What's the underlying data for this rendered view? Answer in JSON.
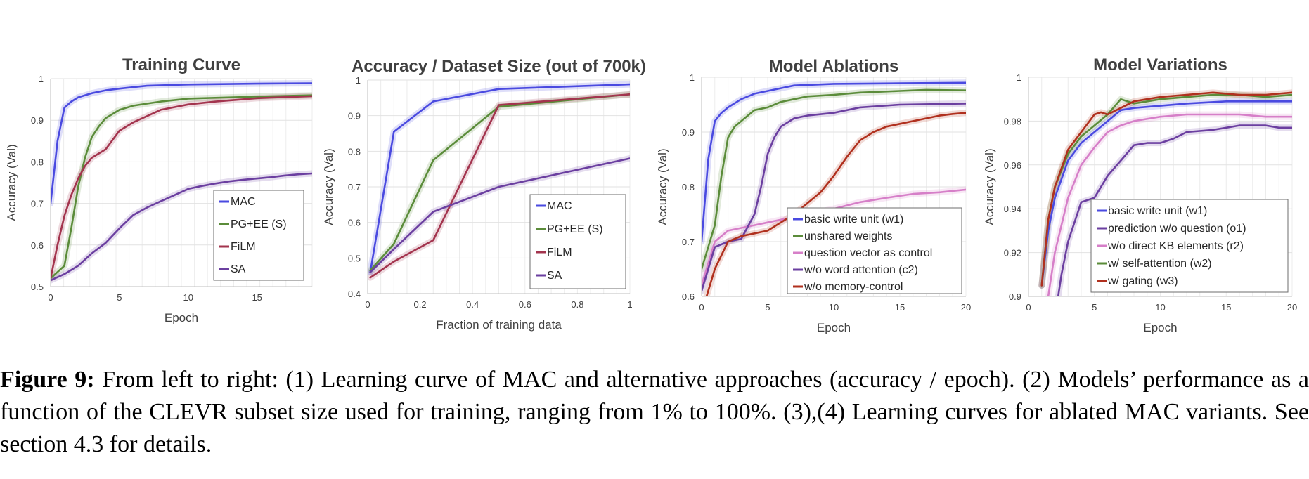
{
  "caption": {
    "label": "Figure 9:",
    "text": "From left to right: (1) Learning curve of MAC and alternative approaches (accuracy / epoch). (2) Models’ performance as a function of the CLEVR subset size used for training, ranging from 1% to 100%. (3),(4) Learning curves for ablated MAC variants. See section 4.3 for details."
  },
  "chart_data": [
    {
      "type": "line",
      "title": "Training Curve",
      "xlabel": "Epoch",
      "ylabel": "Accuracy (Val)",
      "xlim": [
        0,
        19
      ],
      "ylim": [
        0.5,
        1
      ],
      "xticks": [
        0,
        5,
        10,
        15
      ],
      "yticks": [
        0.5,
        0.6,
        0.7,
        0.8,
        0.9,
        1
      ],
      "legend_position": "bottom-right",
      "series": [
        {
          "name": "MAC",
          "color": "#4a4ae0",
          "x": [
            0,
            0.5,
            1,
            1.5,
            2,
            3,
            4,
            5,
            7,
            10,
            15,
            19
          ],
          "y": [
            0.7,
            0.85,
            0.93,
            0.945,
            0.955,
            0.965,
            0.972,
            0.976,
            0.983,
            0.986,
            0.988,
            0.989
          ]
        },
        {
          "name": "PG+EE (S)",
          "color": "#5b8c3a",
          "x": [
            0,
            1,
            1.5,
            2,
            2.5,
            3,
            3.5,
            4,
            5,
            6,
            7,
            8,
            10,
            15,
            19
          ],
          "y": [
            0.52,
            0.55,
            0.64,
            0.74,
            0.81,
            0.86,
            0.885,
            0.905,
            0.925,
            0.935,
            0.94,
            0.945,
            0.952,
            0.957,
            0.96
          ]
        },
        {
          "name": "FiLM",
          "color": "#a3344e",
          "x": [
            0,
            0.5,
            1,
            1.5,
            2,
            2.5,
            3,
            4,
            5,
            6,
            7,
            8,
            10,
            12,
            15,
            19
          ],
          "y": [
            0.52,
            0.6,
            0.67,
            0.72,
            0.76,
            0.79,
            0.81,
            0.83,
            0.875,
            0.895,
            0.91,
            0.925,
            0.938,
            0.945,
            0.953,
            0.958
          ]
        },
        {
          "name": "SA",
          "color": "#6b3fa0",
          "x": [
            0,
            1,
            2,
            3,
            4,
            5,
            6,
            7,
            8,
            9,
            10,
            11,
            12,
            13,
            14,
            15,
            16,
            17,
            18,
            19
          ],
          "y": [
            0.515,
            0.53,
            0.55,
            0.58,
            0.605,
            0.64,
            0.672,
            0.69,
            0.705,
            0.72,
            0.735,
            0.742,
            0.748,
            0.753,
            0.757,
            0.76,
            0.763,
            0.767,
            0.77,
            0.772
          ]
        }
      ]
    },
    {
      "type": "line",
      "title": "Accuracy / Dataset Size (out of 700k)",
      "xlabel": "Fraction of training data",
      "ylabel": "Accuracy (Val)",
      "xlim": [
        0,
        1
      ],
      "ylim": [
        0.4,
        1
      ],
      "xticks": [
        0,
        0.2,
        0.4,
        0.6,
        0.8,
        1
      ],
      "yticks": [
        0.4,
        0.5,
        0.6,
        0.7,
        0.8,
        0.9,
        1
      ],
      "legend_position": "bottom-right",
      "series": [
        {
          "name": "MAC",
          "color": "#4a4ae0",
          "x": [
            0.01,
            0.1,
            0.25,
            0.5,
            1
          ],
          "y": [
            0.46,
            0.855,
            0.94,
            0.975,
            0.988
          ]
        },
        {
          "name": "PG+EE (S)",
          "color": "#5b8c3a",
          "x": [
            0.01,
            0.1,
            0.25,
            0.5,
            1
          ],
          "y": [
            0.465,
            0.54,
            0.775,
            0.925,
            0.96
          ]
        },
        {
          "name": "FiLM",
          "color": "#a3344e",
          "x": [
            0.01,
            0.1,
            0.25,
            0.5,
            1
          ],
          "y": [
            0.445,
            0.49,
            0.55,
            0.93,
            0.96
          ]
        },
        {
          "name": "SA",
          "color": "#6b3fa0",
          "x": [
            0.01,
            0.1,
            0.25,
            0.5,
            1
          ],
          "y": [
            0.46,
            0.525,
            0.63,
            0.7,
            0.78
          ]
        }
      ]
    },
    {
      "type": "line",
      "title": "Model Ablations",
      "xlabel": "Epoch",
      "ylabel": "Accuracy (Val)",
      "xlim": [
        0,
        20
      ],
      "ylim": [
        0.6,
        1
      ],
      "xticks": [
        0,
        5,
        10,
        15,
        20
      ],
      "yticks": [
        0.6,
        0.7,
        0.8,
        0.9,
        1
      ],
      "legend_position": "bottom-right",
      "series": [
        {
          "name": "basic write unit (w1)",
          "color": "#4a4ae0",
          "x": [
            0,
            0.5,
            1,
            1.5,
            2,
            3,
            4,
            5,
            6,
            7,
            10,
            15,
            20
          ],
          "y": [
            0.7,
            0.85,
            0.92,
            0.935,
            0.945,
            0.96,
            0.97,
            0.975,
            0.98,
            0.985,
            0.988,
            0.989,
            0.99
          ]
        },
        {
          "name": "unshared weights",
          "color": "#5b8c3a",
          "x": [
            0,
            1,
            1.5,
            2,
            2.5,
            3,
            4,
            5,
            6,
            7,
            8,
            10,
            12,
            15,
            17,
            20
          ],
          "y": [
            0.65,
            0.73,
            0.82,
            0.89,
            0.91,
            0.92,
            0.94,
            0.945,
            0.955,
            0.96,
            0.965,
            0.968,
            0.972,
            0.975,
            0.977,
            0.976
          ]
        },
        {
          "name": "question vector as control",
          "color": "#d67fc8",
          "x": [
            0,
            1,
            2,
            3,
            4,
            5,
            6,
            7,
            8,
            10,
            12,
            14,
            16,
            18,
            20
          ],
          "y": [
            0.62,
            0.7,
            0.72,
            0.725,
            0.73,
            0.735,
            0.74,
            0.745,
            0.75,
            0.76,
            0.772,
            0.78,
            0.787,
            0.79,
            0.795
          ]
        },
        {
          "name": "w/o word attention (c2)",
          "color": "#6b3fa0",
          "x": [
            0,
            1,
            2,
            3,
            4,
            4.5,
            5,
            5.5,
            6,
            7,
            8,
            10,
            12,
            15,
            20
          ],
          "y": [
            0.61,
            0.69,
            0.7,
            0.705,
            0.75,
            0.8,
            0.86,
            0.89,
            0.91,
            0.925,
            0.93,
            0.935,
            0.945,
            0.95,
            0.952
          ]
        },
        {
          "name": "w/o memory-control",
          "color": "#b0301e",
          "x": [
            0,
            1,
            2,
            3,
            4,
            5,
            6,
            7,
            8,
            9,
            10,
            11,
            12,
            13,
            14,
            15,
            16,
            17,
            18,
            19,
            20
          ],
          "y": [
            0.57,
            0.65,
            0.7,
            0.71,
            0.715,
            0.72,
            0.735,
            0.75,
            0.77,
            0.79,
            0.82,
            0.855,
            0.885,
            0.9,
            0.91,
            0.915,
            0.92,
            0.925,
            0.93,
            0.933,
            0.935
          ]
        }
      ]
    },
    {
      "type": "line",
      "title": "Model Variations",
      "xlabel": "Epoch",
      "ylabel": "Accuracy (Val)",
      "xlim": [
        0,
        20
      ],
      "ylim": [
        0.9,
        1
      ],
      "xticks": [
        0,
        5,
        10,
        15,
        20
      ],
      "yticks": [
        0.9,
        0.92,
        0.94,
        0.96,
        0.98,
        1
      ],
      "legend_position": "bottom-right",
      "series": [
        {
          "name": "basic write unit (w1)",
          "color": "#4a4ae0",
          "x": [
            1,
            1.5,
            2,
            3,
            4,
            5,
            6,
            7,
            8,
            10,
            12,
            15,
            20
          ],
          "y": [
            0.905,
            0.93,
            0.945,
            0.962,
            0.97,
            0.975,
            0.98,
            0.985,
            0.986,
            0.987,
            0.988,
            0.989,
            0.989
          ]
        },
        {
          "name": "prediction w/o question (o1)",
          "color": "#6b3fa0",
          "x": [
            2,
            2.5,
            3,
            4,
            5,
            6,
            7,
            8,
            9,
            10,
            11,
            12,
            14,
            15,
            16,
            17,
            18,
            19,
            20
          ],
          "y": [
            0.89,
            0.91,
            0.925,
            0.943,
            0.945,
            0.955,
            0.962,
            0.969,
            0.97,
            0.97,
            0.972,
            0.975,
            0.976,
            0.977,
            0.978,
            0.978,
            0.978,
            0.977,
            0.977
          ]
        },
        {
          "name": "w/o direct KB elements (r2)",
          "color": "#d67fc8",
          "x": [
            1.5,
            2,
            3,
            4,
            5,
            6,
            7,
            8,
            10,
            12,
            14,
            16,
            18,
            20
          ],
          "y": [
            0.9,
            0.92,
            0.945,
            0.96,
            0.968,
            0.975,
            0.978,
            0.98,
            0.982,
            0.983,
            0.983,
            0.983,
            0.982,
            0.982
          ]
        },
        {
          "name": "w/ self-attention (w2)",
          "color": "#5b8c3a",
          "x": [
            1,
            1.5,
            2,
            3,
            4,
            5,
            6,
            7,
            8,
            9,
            10,
            12,
            14,
            16,
            18,
            20
          ],
          "y": [
            0.905,
            0.935,
            0.95,
            0.965,
            0.973,
            0.978,
            0.983,
            0.99,
            0.988,
            0.989,
            0.99,
            0.991,
            0.992,
            0.992,
            0.991,
            0.992
          ]
        },
        {
          "name": "w/ gating (w3)",
          "color": "#b0301e",
          "x": [
            1,
            1.5,
            2,
            3,
            4,
            5,
            5.5,
            6,
            7,
            8,
            9,
            10,
            12,
            14,
            16,
            18,
            20
          ],
          "y": [
            0.905,
            0.935,
            0.95,
            0.967,
            0.975,
            0.983,
            0.984,
            0.983,
            0.986,
            0.989,
            0.99,
            0.991,
            0.992,
            0.993,
            0.992,
            0.992,
            0.993
          ]
        }
      ]
    }
  ]
}
